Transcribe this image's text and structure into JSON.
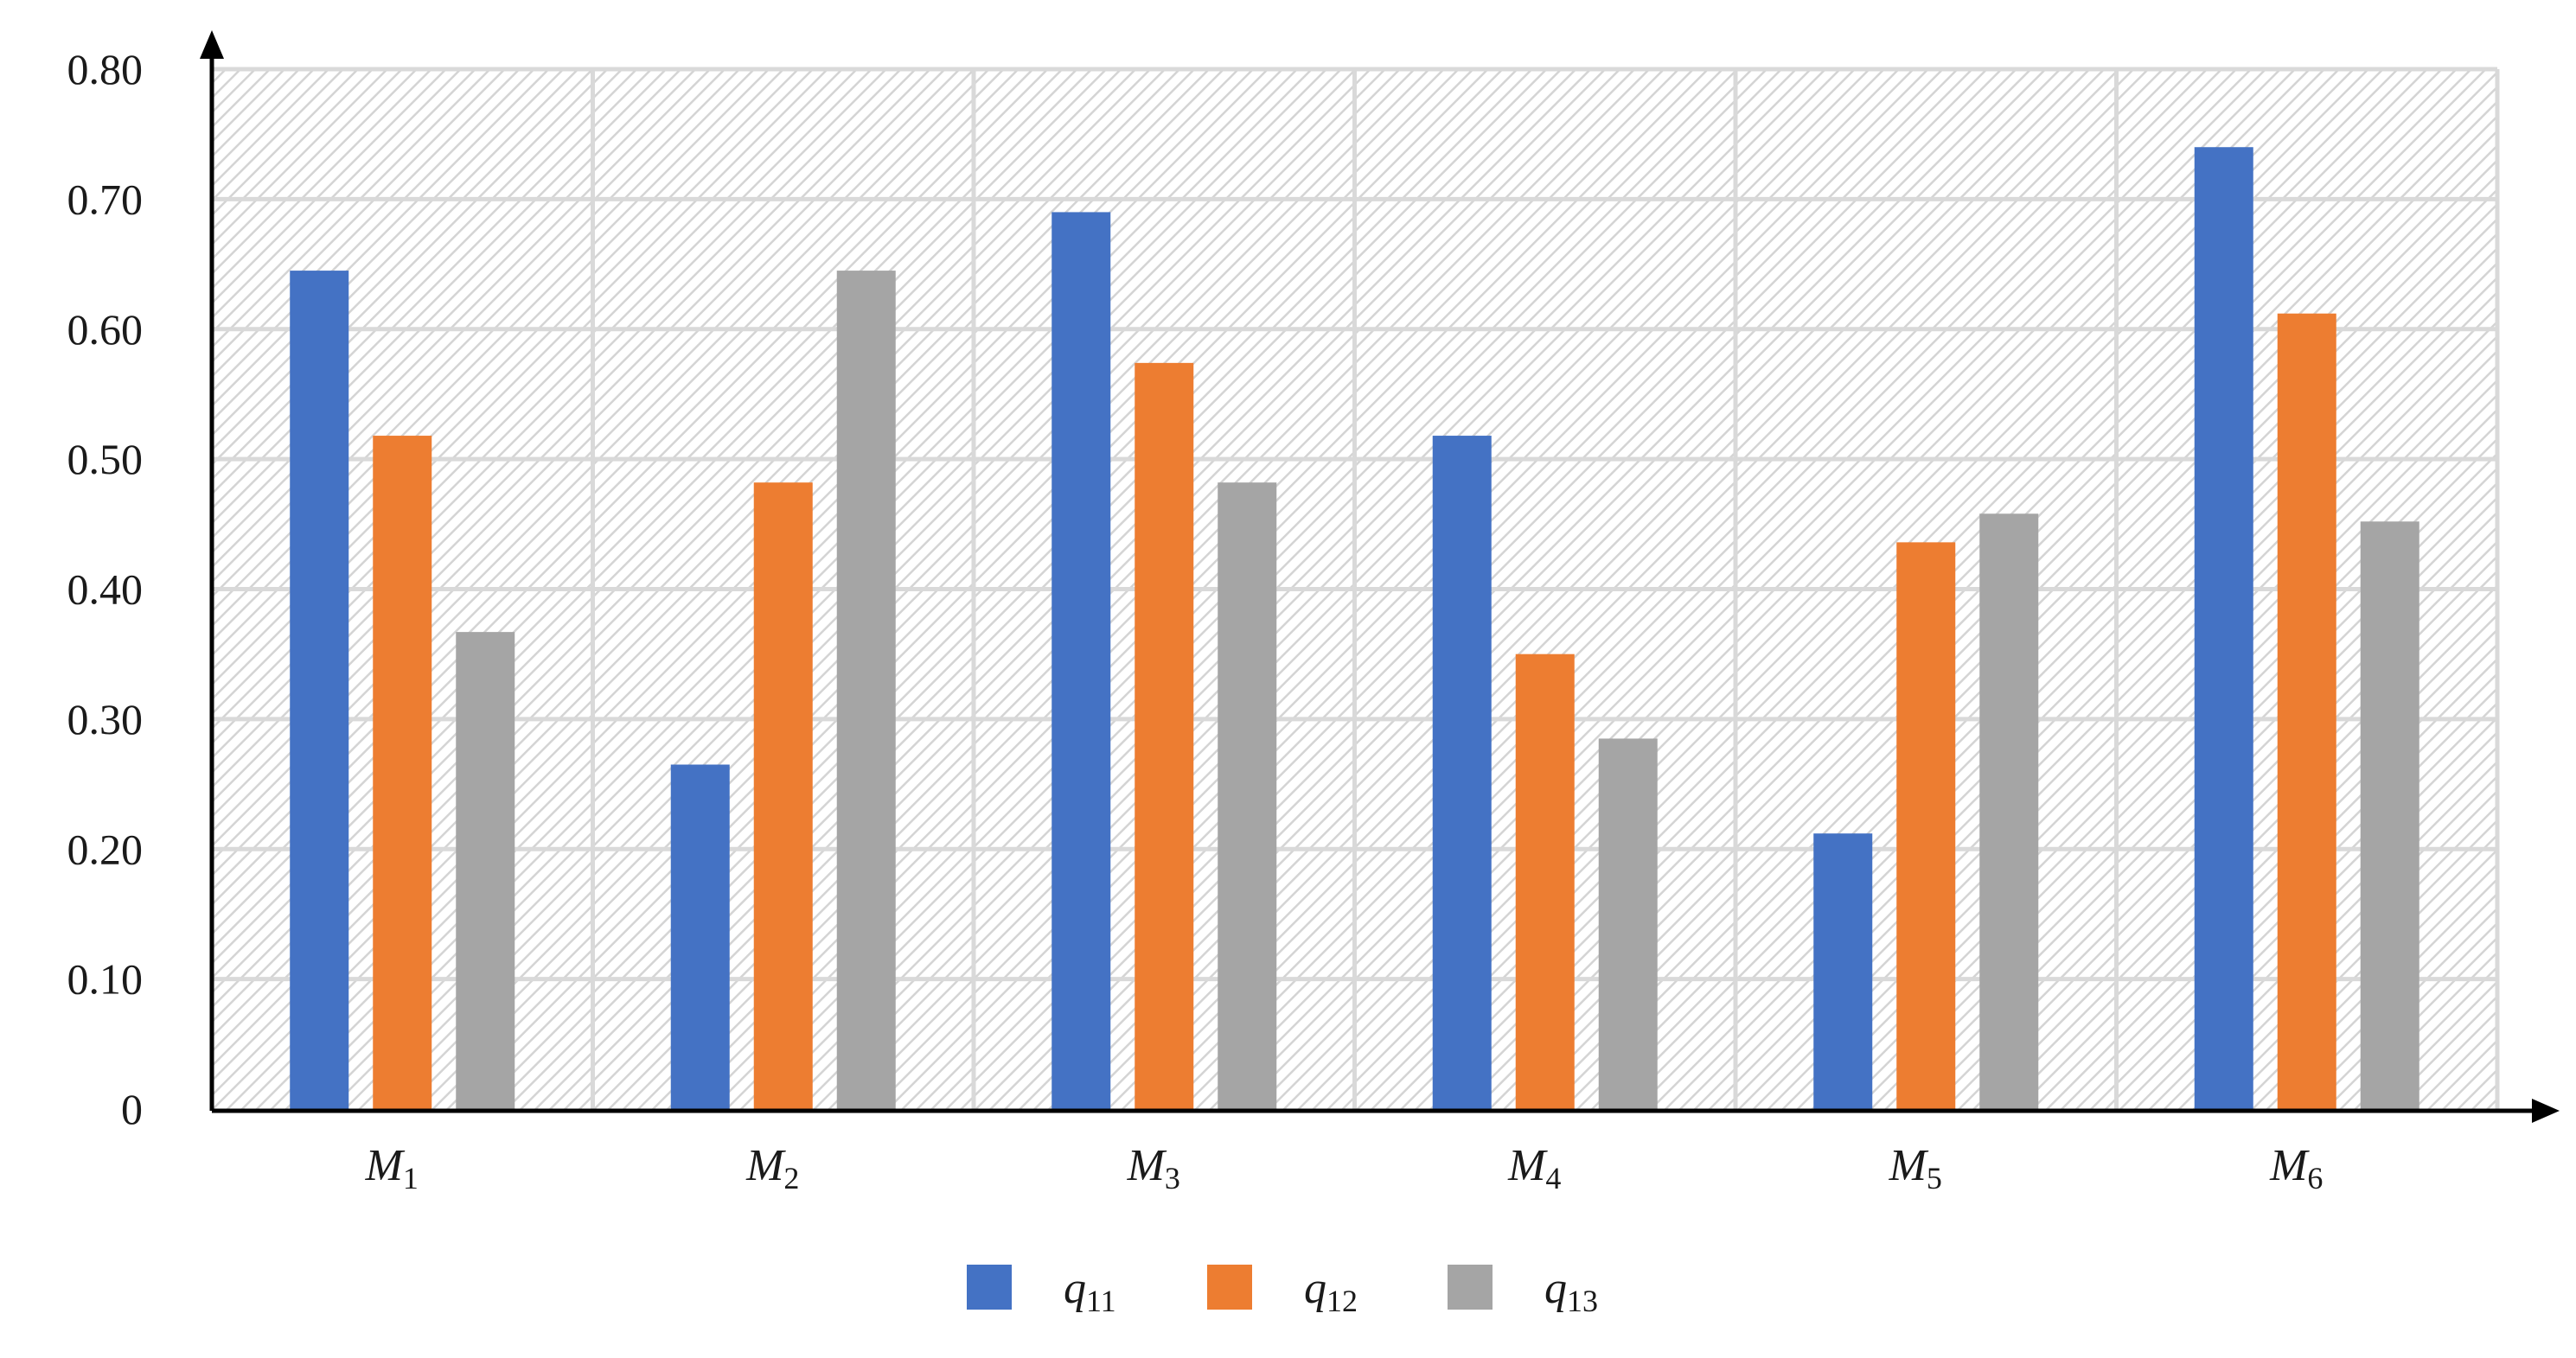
{
  "chart_data": {
    "type": "bar",
    "title": "",
    "xlabel": "",
    "ylabel": "",
    "ylim": [
      0,
      0.8
    ],
    "yticks": [
      "0",
      "0.10",
      "0.20",
      "0.30",
      "0.40",
      "0.50",
      "0.60",
      "0.70",
      "0.80"
    ],
    "categories": [
      {
        "base": "M",
        "sub": "1"
      },
      {
        "base": "M",
        "sub": "2"
      },
      {
        "base": "M",
        "sub": "3"
      },
      {
        "base": "M",
        "sub": "4"
      },
      {
        "base": "M",
        "sub": "5"
      },
      {
        "base": "M",
        "sub": "6"
      }
    ],
    "series": [
      {
        "name": {
          "base": "q",
          "sub": "11"
        },
        "color": "#4472C4",
        "values": [
          0.645,
          0.265,
          0.69,
          0.518,
          0.212,
          0.74
        ]
      },
      {
        "name": {
          "base": "q",
          "sub": "12"
        },
        "color": "#ED7D31",
        "values": [
          0.518,
          0.482,
          0.574,
          0.35,
          0.436,
          0.612
        ]
      },
      {
        "name": {
          "base": "q",
          "sub": "13"
        },
        "color": "#A5A5A5",
        "values": [
          0.367,
          0.645,
          0.482,
          0.285,
          0.458,
          0.452
        ]
      }
    ],
    "grid": true,
    "legend_position": "bottom-center"
  }
}
